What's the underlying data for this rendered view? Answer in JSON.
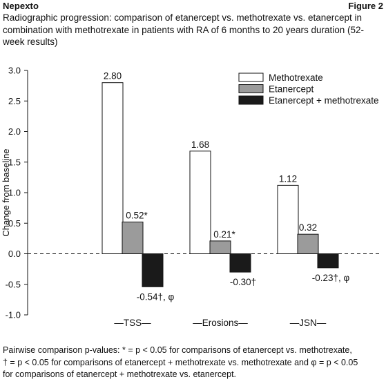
{
  "header": {
    "left": "Nepexto",
    "right": "Figure 2"
  },
  "subtitle": "Radiographic progression: comparison of etanercept vs. methotrexate vs. etanercept in combination with methotrexate in patients with RA of 6 months to 20 years duration (52-week results)",
  "chart_data": {
    "type": "bar",
    "ylabel": "Change from baseline",
    "ylim": [
      -1.0,
      3.0
    ],
    "yticks": [
      "3.0",
      "2.5",
      "2.0",
      "1.5",
      "1.0",
      "0.5",
      "0.0",
      "-0.5",
      "-1.0"
    ],
    "categories": [
      "TSS",
      "Erosions",
      "JSN"
    ],
    "category_labels": [
      "—TSS—",
      "—Erosions—",
      "—JSN—"
    ],
    "series": [
      {
        "name": "Methotrexate",
        "color": "#ffffff",
        "values": [
          2.8,
          1.68,
          1.12
        ],
        "labels": [
          "2.80",
          "1.68",
          "1.12"
        ]
      },
      {
        "name": "Etanercept",
        "color": "#9b9b9b",
        "values": [
          0.52,
          0.21,
          0.32
        ],
        "labels": [
          "0.52*",
          "0.21*",
          "0.32"
        ]
      },
      {
        "name": "Etanercept + methotrexate",
        "color": "#1a1a1a",
        "values": [
          -0.54,
          -0.3,
          -0.23
        ],
        "labels": [
          "-0.54†, φ",
          "-0.30†",
          "-0.23†, φ"
        ]
      }
    ],
    "legend_position": "top-right",
    "zero_line": "dashed",
    "grid": false
  },
  "footnote": {
    "line1": "Pairwise comparison p-values: * = p < 0.05 for comparisons of etanercept vs. methotrexate,",
    "line2": "† = p < 0.05 for comparisons of etanercept + methotrexate vs. methotrexate and φ = p < 0.05",
    "line3": "for comparisons of etanercept + methotrexate vs. etanercept."
  }
}
